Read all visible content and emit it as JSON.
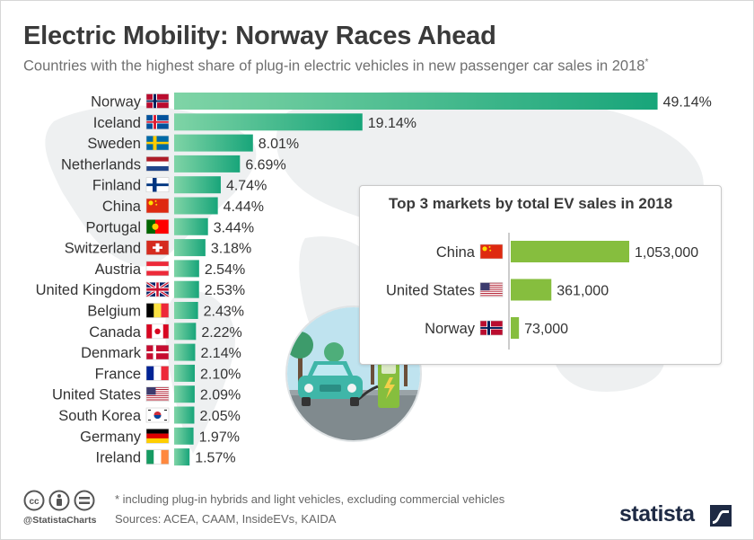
{
  "header": {
    "title": "Electric Mobility: Norway Races Ahead",
    "subtitle": "Countries with the highest share of plug-in electric vehicles in new passenger car sales in 2018",
    "subtitle_mark": "*"
  },
  "chart_data": [
    {
      "type": "bar",
      "orientation": "horizontal",
      "categories": [
        "Norway",
        "Iceland",
        "Sweden",
        "Netherlands",
        "Finland",
        "China",
        "Portugal",
        "Switzerland",
        "Austria",
        "United Kingdom",
        "Belgium",
        "Canada",
        "Denmark",
        "France",
        "United States",
        "South Korea",
        "Germany",
        "Ireland"
      ],
      "values": [
        49.14,
        19.14,
        8.01,
        6.69,
        4.74,
        4.44,
        3.44,
        3.18,
        2.54,
        2.53,
        2.43,
        2.22,
        2.14,
        2.1,
        2.09,
        2.05,
        1.97,
        1.57
      ],
      "value_labels": [
        "49.14%",
        "19.14%",
        "8.01%",
        "6.69%",
        "4.74%",
        "4.44%",
        "3.44%",
        "3.18%",
        "2.54%",
        "2.53%",
        "2.43%",
        "2.22%",
        "2.14%",
        "2.10%",
        "2.09%",
        "2.05%",
        "1.97%",
        "1.57%"
      ],
      "flags": [
        "flag-norway",
        "flag-iceland",
        "flag-sweden",
        "flag-netherlands",
        "flag-finland",
        "flag-china",
        "flag-portugal",
        "flag-switzerland",
        "flag-austria",
        "flag-united-kingdom",
        "flag-belgium",
        "flag-canada",
        "flag-denmark",
        "flag-france",
        "flag-united-states",
        "flag-south-korea",
        "flag-germany",
        "flag-ireland"
      ],
      "unit": "%",
      "xlim": [
        0,
        50
      ],
      "grid": false,
      "color_start": "#7fd4a6",
      "color_end": "#18a57a"
    },
    {
      "type": "bar",
      "orientation": "horizontal",
      "title": "Top 3 markets by total EV sales in 2018",
      "categories": [
        "China",
        "United States",
        "Norway"
      ],
      "values": [
        1053000,
        361000,
        73000
      ],
      "value_labels": [
        "1,053,000",
        "361,000",
        "73,000"
      ],
      "flags": [
        "flag-china",
        "flag-united-states",
        "flag-norway"
      ],
      "xlim": [
        0,
        1053000
      ],
      "grid": false,
      "color": "#86be3e"
    }
  ],
  "footer": {
    "note": "* including plug-in hybrids and light vehicles, excluding commercial vehicles",
    "sources": "Sources: ACEA, CAAM, InsideEVs, KAIDA",
    "handle": "@StatistaCharts",
    "logo": "statista",
    "license_icons": [
      "cc-icon",
      "by-icon",
      "nd-icon"
    ]
  },
  "illustration": {
    "icon": "electric-car-charging-icon",
    "colors": {
      "sky": "#bfe3ef",
      "car": "#3fb6a8",
      "charger": "#86be3e",
      "tree": "#3d9b6b",
      "road": "#808a8e"
    }
  },
  "colors": {
    "title": "#3a3a3a",
    "subtitle": "#707070",
    "label": "#333333",
    "inset_border": "#c9c9c9"
  }
}
